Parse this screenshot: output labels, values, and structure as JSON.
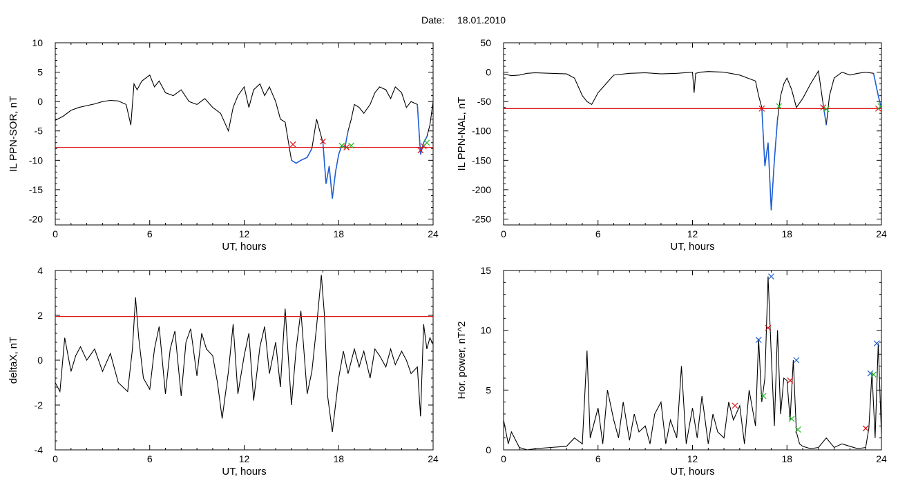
{
  "header": {
    "date_label": "Date:",
    "date_value": "18.01.2010"
  },
  "colors": {
    "trace": "#000000",
    "highlight": "#1f5fd6",
    "threshold": "#e01010",
    "marker_red": "#e01010",
    "marker_green": "#22bb22",
    "marker_blue": "#2060d0"
  },
  "chart_data": [
    {
      "type": "line",
      "ylabel": "IL PPN-SOR, nT",
      "xlabel": "UT, hours",
      "xlim": [
        0,
        24
      ],
      "ylim": [
        -21,
        10
      ],
      "xticks": [
        0,
        6,
        12,
        18,
        24
      ],
      "yticks": [
        10,
        5,
        0,
        -5,
        -10,
        -15,
        -20
      ],
      "threshold": -7.8,
      "series": [
        {
          "x": [
            0,
            0.5,
            1,
            1.5,
            2,
            2.5,
            3,
            3.5,
            4,
            4.5,
            4.8,
            5,
            5.2,
            5.5,
            6,
            6.3,
            6.6,
            7,
            7.5,
            8,
            8.5,
            9,
            9.5,
            10,
            10.5,
            11,
            11.3,
            11.6,
            12,
            12.3,
            12.6,
            13,
            13.3,
            13.6,
            14,
            14.3,
            14.6,
            15,
            15.3,
            15.6,
            16,
            16.3,
            16.6,
            17,
            17.2,
            17.4,
            17.6,
            17.8,
            18,
            18.2,
            18.4,
            18.6,
            18.8,
            19,
            19.3,
            19.6,
            20,
            20.3,
            20.6,
            21,
            21.3,
            21.6,
            22,
            22.3,
            22.6,
            23,
            23.2,
            23.4,
            23.6,
            23.8,
            24
          ],
          "y": [
            -3.2,
            -2.5,
            -1.5,
            -1,
            -0.7,
            -0.4,
            0,
            0.2,
            0.1,
            -0.5,
            -4,
            3,
            2,
            3.5,
            4.5,
            2.5,
            3.5,
            1.5,
            1,
            2,
            0,
            -0.5,
            0.5,
            -1,
            -2,
            -5,
            -1,
            1,
            2.5,
            -1,
            2,
            3,
            1,
            2.5,
            0,
            -3,
            -3.5,
            -10,
            -10.5,
            -10,
            -9.5,
            -8,
            -3,
            -7,
            -14,
            -11,
            -16.5,
            -12,
            -9,
            -7.5,
            -7.8,
            -5,
            -3,
            -0.5,
            -1,
            -2,
            -0.5,
            1.5,
            2.5,
            2,
            0.5,
            2.5,
            1.5,
            -1,
            0,
            -0.5,
            -9,
            -7,
            -6,
            -4,
            0
          ]
        }
      ],
      "highlight_ranges": [
        [
          14.9,
          16.4
        ],
        [
          16.9,
          18.6
        ],
        [
          23.0,
          23.6
        ]
      ],
      "markers": [
        {
          "x": 15.1,
          "y": -7.3,
          "color": "red"
        },
        {
          "x": 17.0,
          "y": -6.8,
          "color": "red"
        },
        {
          "x": 18.2,
          "y": -7.5,
          "color": "green"
        },
        {
          "x": 18.5,
          "y": -7.8,
          "color": "red"
        },
        {
          "x": 18.8,
          "y": -7.5,
          "color": "green"
        },
        {
          "x": 23.2,
          "y": -8.3,
          "color": "red"
        },
        {
          "x": 23.4,
          "y": -7.6,
          "color": "red"
        },
        {
          "x": 23.6,
          "y": -7.0,
          "color": "green"
        }
      ]
    },
    {
      "type": "line",
      "ylabel": "IL PPN-NAL, nT",
      "xlabel": "UT, hours",
      "xlim": [
        0,
        24
      ],
      "ylim": [
        -260,
        50
      ],
      "xticks": [
        0,
        6,
        12,
        18,
        24
      ],
      "yticks": [
        50,
        0,
        -50,
        -100,
        -150,
        -200,
        -250
      ],
      "threshold": -62,
      "series": [
        {
          "x": [
            0,
            0.5,
            1,
            1.5,
            2,
            3,
            4,
            4.5,
            5,
            5.3,
            5.6,
            6,
            6.5,
            7,
            8,
            9,
            10,
            11,
            11.5,
            12,
            12.1,
            12.2,
            12.5,
            13,
            14,
            15,
            15.5,
            16,
            16.2,
            16.4,
            16.6,
            16.8,
            17,
            17.2,
            17.4,
            17.6,
            17.8,
            18,
            18.3,
            18.6,
            19,
            19.5,
            20,
            20.3,
            20.5,
            20.7,
            21,
            21.5,
            22,
            22.5,
            23,
            23.5,
            23.8,
            24
          ],
          "y": [
            -3,
            -6,
            -5,
            -2,
            -1,
            -2,
            -3,
            -10,
            -40,
            -50,
            -55,
            -35,
            -20,
            -5,
            -2,
            -1,
            -3,
            -2,
            -1,
            0,
            -35,
            -2,
            0,
            1,
            0,
            -5,
            -10,
            -15,
            -40,
            -60,
            -160,
            -120,
            -235,
            -150,
            -80,
            -40,
            -20,
            -10,
            -30,
            -60,
            -45,
            -20,
            2,
            -55,
            -90,
            -40,
            -10,
            0,
            -5,
            -2,
            0,
            -2,
            -40,
            -62
          ]
        }
      ],
      "highlight_ranges": [
        [
          16.3,
          17.5
        ],
        [
          20.3,
          20.6
        ],
        [
          23.5,
          24
        ]
      ],
      "markers": [
        {
          "x": 16.4,
          "y": -62,
          "color": "red"
        },
        {
          "x": 17.5,
          "y": -58,
          "color": "green"
        },
        {
          "x": 20.3,
          "y": -60,
          "color": "red"
        },
        {
          "x": 20.5,
          "y": -63,
          "color": "green"
        },
        {
          "x": 23.8,
          "y": -62,
          "color": "red"
        },
        {
          "x": 23.95,
          "y": -58,
          "color": "green"
        }
      ]
    },
    {
      "type": "line",
      "ylabel": "deltaX, nT",
      "xlabel": "UT, hours",
      "xlim": [
        0,
        24
      ],
      "ylim": [
        -4,
        4
      ],
      "xticks": [
        0,
        6,
        12,
        18,
        24
      ],
      "yticks": [
        4,
        2,
        0,
        -2,
        -4
      ],
      "threshold": 1.95,
      "series": [
        {
          "x": [
            0,
            0.3,
            0.6,
            1,
            1.3,
            1.6,
            2,
            2.5,
            3,
            3.5,
            4,
            4.3,
            4.6,
            4.9,
            5.1,
            5.3,
            5.6,
            6,
            6.3,
            6.6,
            7,
            7.3,
            7.6,
            8,
            8.3,
            8.6,
            9,
            9.3,
            9.6,
            10,
            10.3,
            10.6,
            11,
            11.3,
            11.6,
            12,
            12.3,
            12.6,
            13,
            13.3,
            13.6,
            14,
            14.3,
            14.6,
            15,
            15.3,
            15.6,
            16,
            16.3,
            16.6,
            16.9,
            17.1,
            17.3,
            17.6,
            18,
            18.3,
            18.6,
            19,
            19.3,
            19.6,
            20,
            20.3,
            20.6,
            21,
            21.3,
            21.6,
            22,
            22.3,
            22.6,
            23,
            23.2,
            23.4,
            23.6,
            23.8,
            24
          ],
          "y": [
            -1,
            -1.4,
            1,
            -0.5,
            0.2,
            0.6,
            0,
            0.5,
            -0.5,
            0.3,
            -1,
            -1.2,
            -1.4,
            0.5,
            2.8,
            1,
            -0.8,
            -1.3,
            0.5,
            1.5,
            -1.5,
            0.5,
            1.3,
            -1.6,
            0.8,
            1.4,
            -0.7,
            1.2,
            0.5,
            0.2,
            -1,
            -2.6,
            -0.5,
            1.6,
            -1.5,
            0.2,
            1.2,
            -1.8,
            0.6,
            1.5,
            -0.6,
            0.8,
            -1.2,
            2.3,
            -2,
            0.5,
            2.2,
            -1.5,
            -0.5,
            1.5,
            3.8,
            2,
            -1.6,
            -3.2,
            -0.8,
            0.4,
            -0.6,
            0.5,
            -0.3,
            0.4,
            -0.8,
            0.5,
            0.2,
            -0.3,
            0.5,
            -0.2,
            0.4,
            0,
            -0.6,
            -0.3,
            -2.5,
            1.6,
            0.5,
            1,
            0.7
          ]
        }
      ]
    },
    {
      "type": "line",
      "ylabel": "Hor. power, nT^2",
      "xlabel": "UT, hours",
      "xlim": [
        0,
        24
      ],
      "ylim": [
        0,
        15
      ],
      "xticks": [
        0,
        6,
        12,
        18,
        24
      ],
      "yticks": [
        15,
        10,
        5,
        0
      ],
      "series": [
        {
          "x": [
            0,
            0.3,
            0.5,
            1,
            1.5,
            2,
            3,
            4,
            4.5,
            5,
            5.3,
            5.5,
            6,
            6.3,
            6.6,
            7,
            7.3,
            7.6,
            8,
            8.3,
            8.6,
            9,
            9.3,
            9.6,
            10,
            10.3,
            10.6,
            11,
            11.3,
            11.6,
            12,
            12.3,
            12.6,
            13,
            13.3,
            13.6,
            14,
            14.3,
            14.6,
            15,
            15.3,
            15.6,
            16,
            16.2,
            16.4,
            16.6,
            16.8,
            17,
            17.2,
            17.4,
            17.6,
            17.8,
            18,
            18.2,
            18.4,
            18.6,
            18.8,
            19,
            19.5,
            20,
            20.5,
            21,
            21.5,
            22,
            22.5,
            23,
            23.2,
            23.4,
            23.6,
            23.8,
            24
          ],
          "y": [
            2.5,
            0.5,
            1.5,
            0.2,
            0,
            0.1,
            0.2,
            0.3,
            1,
            0.5,
            8.3,
            1,
            3.5,
            0.5,
            5,
            2.5,
            1,
            4,
            0.8,
            3,
            1.5,
            2,
            0.5,
            3,
            4,
            0.5,
            2.5,
            1,
            7,
            0.5,
            3.5,
            1,
            4.5,
            0.5,
            3,
            1.5,
            1,
            4,
            2.5,
            3.7,
            0.5,
            5,
            2,
            9.3,
            4,
            6,
            14.5,
            8,
            2,
            10,
            3,
            6,
            5.8,
            2.5,
            7.5,
            1.5,
            0.5,
            0.3,
            0.1,
            0.2,
            1,
            0.2,
            0.5,
            0.3,
            0.1,
            0.2,
            1.8,
            6.5,
            1,
            8.9,
            1.3
          ]
        }
      ],
      "markers": [
        {
          "x": 14.7,
          "y": 3.7,
          "color": "red"
        },
        {
          "x": 16.2,
          "y": 9.2,
          "color": "blue"
        },
        {
          "x": 16.5,
          "y": 4.5,
          "color": "green"
        },
        {
          "x": 16.8,
          "y": 10.2,
          "color": "red"
        },
        {
          "x": 17.0,
          "y": 14.5,
          "color": "blue"
        },
        {
          "x": 18.2,
          "y": 5.8,
          "color": "red"
        },
        {
          "x": 18.3,
          "y": 2.6,
          "color": "green"
        },
        {
          "x": 18.6,
          "y": 7.5,
          "color": "blue"
        },
        {
          "x": 18.7,
          "y": 1.7,
          "color": "green"
        },
        {
          "x": 23.0,
          "y": 1.8,
          "color": "red"
        },
        {
          "x": 23.3,
          "y": 6.4,
          "color": "blue"
        },
        {
          "x": 23.5,
          "y": 6.3,
          "color": "green"
        },
        {
          "x": 23.7,
          "y": 8.9,
          "color": "blue"
        }
      ]
    }
  ]
}
